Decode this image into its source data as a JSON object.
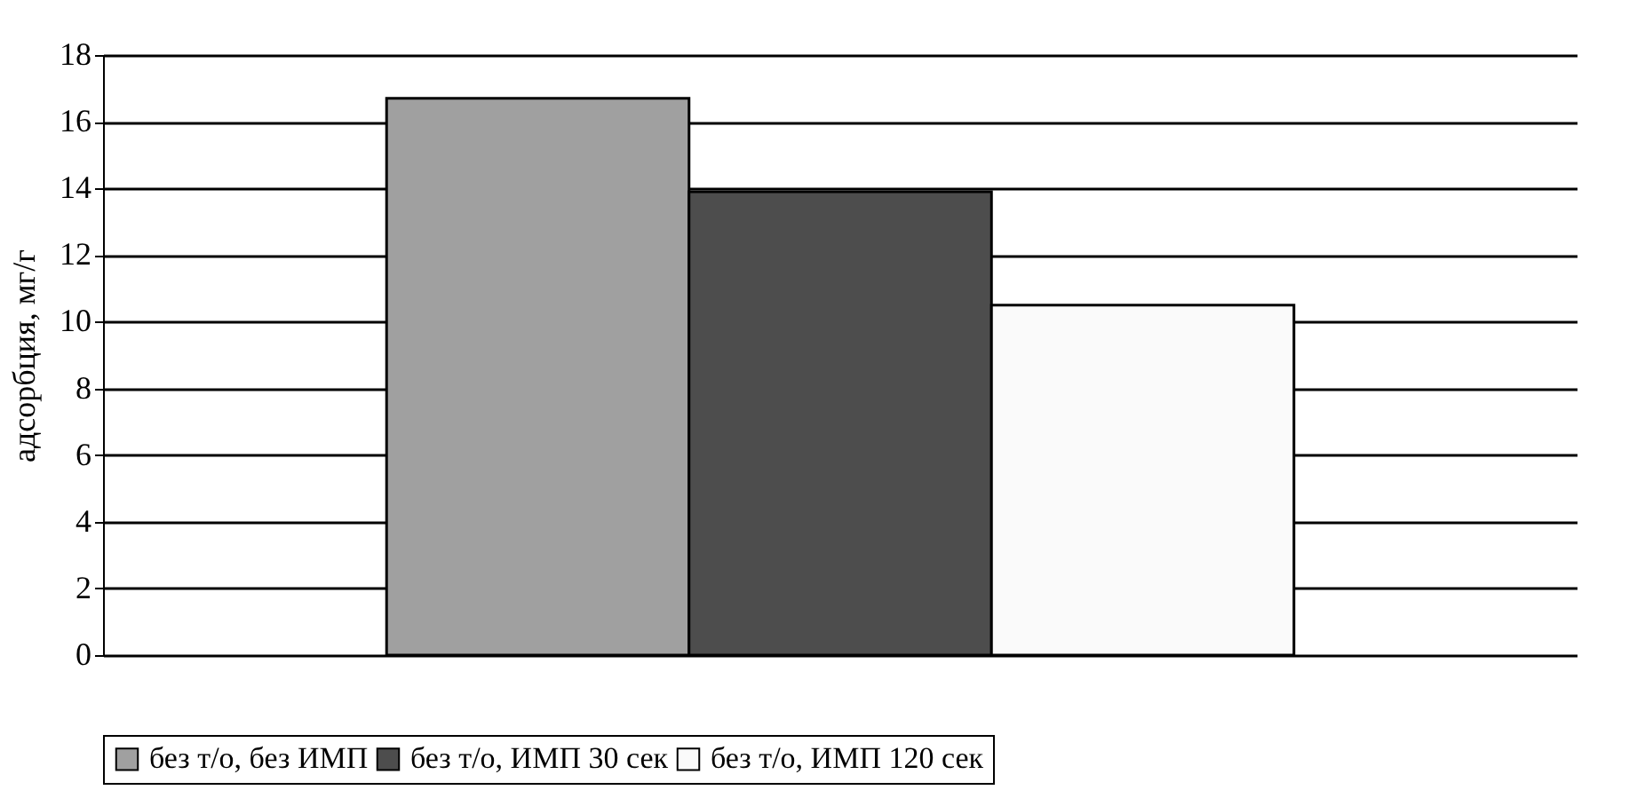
{
  "chart_data": {
    "type": "bar",
    "ylabel": "адсорбция, мг/г",
    "categories": [
      null
    ],
    "series": [
      {
        "name": "без т/о, без ИМП",
        "color": "#a0a0a0",
        "values": [
          16.7
        ]
      },
      {
        "name": "без т/о, ИМП 30 сек",
        "color": "#4d4d4d",
        "values": [
          13.9
        ]
      },
      {
        "name": "без т/о, ИМП 120 сек",
        "color": "#fafafa",
        "values": [
          10.5
        ]
      }
    ],
    "ylim": [
      0,
      18
    ],
    "yticks": [
      0,
      2,
      4,
      6,
      8,
      10,
      12,
      14,
      16,
      18
    ],
    "grid": "y",
    "legend": "bottom",
    "tick_labels": "y"
  }
}
